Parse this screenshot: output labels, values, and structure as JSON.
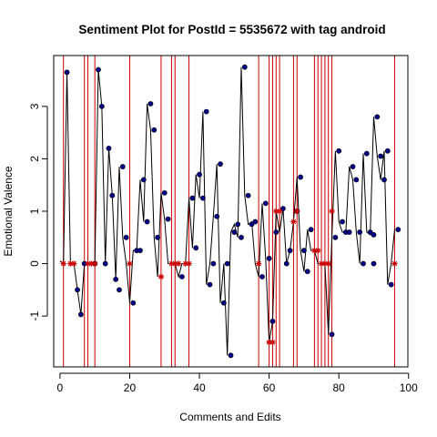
{
  "chart_data": {
    "type": "line",
    "title": "Sentiment Plot for PostId =  5535672  with tag  android",
    "xlabel": "Comments and Edits",
    "ylabel": "Emotional Valence",
    "xlim": [
      -1.8,
      99.8
    ],
    "ylim": [
      -1.97,
      3.97
    ],
    "x_ticks": [
      0,
      20,
      40,
      60,
      80,
      100
    ],
    "x_tick_labels": [
      "0",
      "20",
      "40",
      "60",
      "80",
      "100"
    ],
    "y_ticks": [
      -1,
      0,
      1,
      2,
      3
    ],
    "y_tick_labels": [
      "-1",
      "0",
      "1",
      "2",
      "3"
    ],
    "series": [
      {
        "name": "comments",
        "marker": "filled-circle",
        "color": "#00008B",
        "points": [
          [
            2,
            3.65
          ],
          [
            5,
            -0.5
          ],
          [
            6,
            -0.97
          ],
          [
            7,
            0
          ],
          [
            11,
            3.7
          ],
          [
            12,
            3.0
          ],
          [
            13,
            0
          ],
          [
            14,
            2.2
          ],
          [
            15,
            1.3
          ],
          [
            16,
            -0.3
          ],
          [
            17,
            -0.5
          ],
          [
            18,
            1.85
          ],
          [
            19,
            0.5
          ],
          [
            21,
            -0.75
          ],
          [
            22,
            0.25
          ],
          [
            23,
            0.25
          ],
          [
            24,
            1.6
          ],
          [
            25,
            0.8
          ],
          [
            26,
            3.05
          ],
          [
            27,
            2.55
          ],
          [
            28,
            0.5
          ],
          [
            30,
            1.35
          ],
          [
            31,
            0.85
          ],
          [
            35,
            -0.25
          ],
          [
            38,
            1.25
          ],
          [
            39,
            0.3
          ],
          [
            40,
            1.7
          ],
          [
            41,
            1.25
          ],
          [
            42,
            2.9
          ],
          [
            43,
            -0.4
          ],
          [
            44,
            0
          ],
          [
            45,
            0.9
          ],
          [
            46,
            1.9
          ],
          [
            47,
            -0.75
          ],
          [
            48,
            0
          ],
          [
            49,
            -1.75
          ],
          [
            50,
            0.6
          ],
          [
            51,
            0.75
          ],
          [
            52,
            0.5
          ],
          [
            53,
            3.75
          ],
          [
            54,
            1.3
          ],
          [
            55,
            0.75
          ],
          [
            56,
            0.8
          ],
          [
            58,
            -0.25
          ],
          [
            59,
            1.15
          ],
          [
            60,
            0.1
          ],
          [
            61,
            -1.1
          ],
          [
            62,
            0.6
          ],
          [
            64,
            1.05
          ],
          [
            65,
            0
          ],
          [
            66,
            0.25
          ],
          [
            68,
            1.0
          ],
          [
            69,
            1.65
          ],
          [
            70,
            0.25
          ],
          [
            71,
            -0.15
          ],
          [
            72,
            0.65
          ],
          [
            78,
            -1.35
          ],
          [
            79,
            0.5
          ],
          [
            80,
            2.15
          ],
          [
            81,
            0.8
          ],
          [
            82,
            0.6
          ],
          [
            83,
            0.6
          ],
          [
            84,
            1.85
          ],
          [
            85,
            1.6
          ],
          [
            86,
            0.6
          ],
          [
            87,
            0
          ],
          [
            88,
            2.1
          ],
          [
            89,
            0.6
          ],
          [
            90,
            0.55
          ],
          [
            91,
            2.8
          ],
          [
            92,
            2.05
          ],
          [
            93,
            1.6
          ],
          [
            94,
            2.15
          ],
          [
            95,
            -0.4
          ],
          [
            97,
            0.65
          ],
          [
            10,
            0
          ],
          [
            90,
            0
          ]
        ]
      },
      {
        "name": "edits",
        "marker": "asterisk",
        "color": "#CC0000",
        "points": [
          [
            1,
            0
          ],
          [
            3,
            0
          ],
          [
            4,
            0
          ],
          [
            8,
            0
          ],
          [
            9,
            0
          ],
          [
            10,
            0
          ],
          [
            20,
            0
          ],
          [
            29,
            -0.25
          ],
          [
            32,
            0
          ],
          [
            33,
            0
          ],
          [
            34,
            0
          ],
          [
            36,
            0
          ],
          [
            37,
            0
          ],
          [
            57,
            0
          ],
          [
            60,
            -1.5
          ],
          [
            61,
            -1.5
          ],
          [
            62,
            1.0
          ],
          [
            63,
            1.0
          ],
          [
            67,
            0.8
          ],
          [
            68,
            1.0
          ],
          [
            73,
            0.25
          ],
          [
            74,
            0.25
          ],
          [
            75,
            0
          ],
          [
            76,
            0
          ],
          [
            77,
            0
          ],
          [
            78,
            1.0
          ],
          [
            96,
            0
          ]
        ]
      }
    ],
    "line_sequence_y": [
      0.05,
      0,
      3.65,
      0,
      0,
      -0.5,
      -0.97,
      0,
      0,
      0,
      0,
      3.7,
      3.0,
      0,
      2.2,
      1.3,
      -0.3,
      1.85,
      0.5,
      0,
      -0.75,
      0.25,
      0.25,
      1.6,
      0.8,
      3.05,
      2.55,
      0.5,
      -0.25,
      1.35,
      0.85,
      0,
      0,
      0,
      -0.25,
      0,
      0,
      1.25,
      0.3,
      1.7,
      1.25,
      2.9,
      -0.4,
      0,
      0.9,
      1.9,
      -0.75,
      0,
      -1.75,
      0.6,
      0.75,
      0.5,
      3.75,
      1.3,
      0.75,
      0.8,
      0,
      -0.25,
      1.15,
      0.1,
      -1.5,
      -1.1,
      1.0,
      0.6,
      1.05,
      0,
      0.25,
      0.8,
      1.65,
      0.25,
      -0.15,
      0.65,
      0.25,
      0.25,
      0,
      0,
      0,
      -1.35,
      0.5,
      2.15,
      0.8,
      0.6,
      0.6,
      1.85,
      1.6,
      0.6,
      0,
      2.1,
      0.6,
      0.55,
      2.8,
      2.05,
      1.6,
      2.15,
      -0.4,
      0,
      0.65
    ],
    "vertical_lines_x": [
      1,
      7,
      8,
      10,
      20,
      29,
      32,
      33,
      37,
      57,
      60,
      61,
      62,
      63,
      67,
      68,
      73,
      74,
      75,
      76,
      77,
      78,
      96
    ],
    "grid": false,
    "legend": "none"
  },
  "colors": {
    "line": "#000000",
    "axis": "#000000",
    "vline": "#CC0000",
    "comment_marker": "#00008B",
    "edit_marker": "#CC0000"
  }
}
